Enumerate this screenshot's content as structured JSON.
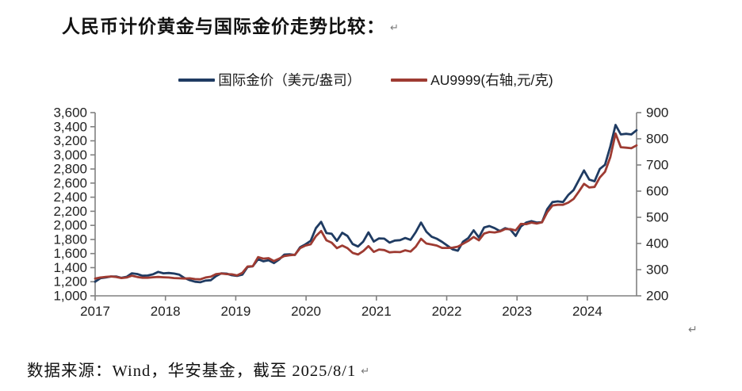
{
  "page": {
    "title": "人民币计价黄金与国际金价走势比较：",
    "source_note": "数据来源：Wind，华安基金，截至 2025/8/1",
    "return_mark": "↵"
  },
  "chart_data": {
    "type": "line",
    "title": "人民币计价黄金与国际金价走势比较",
    "grid": false,
    "legend_position": "top-center",
    "x_axis": {
      "unit": "year",
      "start": 2017.0,
      "end": 2025.583,
      "step_years": 0.0833333,
      "tick_labels": [
        "2017",
        "2018",
        "2019",
        "2020",
        "2021",
        "2022",
        "2023",
        "2024"
      ]
    },
    "left_axis": {
      "min": 1000,
      "max": 3600,
      "tick_labels": [
        "3,600",
        "3,400",
        "3,200",
        "3,000",
        "2,800",
        "2,600",
        "2,400",
        "2,200",
        "2,000",
        "1,800",
        "1,600",
        "1,400",
        "1,200",
        "1,000"
      ]
    },
    "right_axis": {
      "min": 200,
      "max": 900,
      "tick_labels": [
        "900",
        "800",
        "700",
        "600",
        "500",
        "400",
        "300",
        "200"
      ]
    },
    "colors": {
      "international_gold": "#1F3B62",
      "au9999": "#9E3B32",
      "axis": "#808080"
    },
    "series": [
      {
        "name": "国际金价（美元/盎司）",
        "axis": "left",
        "color": "#1F3B62",
        "values": [
          1200,
          1250,
          1260,
          1275,
          1275,
          1255,
          1270,
          1320,
          1310,
          1285,
          1288,
          1305,
          1340,
          1320,
          1324,
          1316,
          1300,
          1253,
          1222,
          1200,
          1192,
          1216,
          1222,
          1280,
          1320,
          1315,
          1293,
          1282,
          1300,
          1410,
          1420,
          1520,
          1490,
          1505,
          1465,
          1515,
          1585,
          1590,
          1580,
          1690,
          1730,
          1780,
          1960,
          2050,
          1890,
          1880,
          1780,
          1895,
          1850,
          1735,
          1700,
          1770,
          1900,
          1770,
          1815,
          1812,
          1755,
          1785,
          1790,
          1820,
          1795,
          1905,
          2040,
          1910,
          1840,
          1810,
          1765,
          1712,
          1660,
          1640,
          1770,
          1820,
          1930,
          1828,
          1970,
          1990,
          1960,
          1920,
          1960,
          1940,
          1850,
          1985,
          2040,
          2060,
          2040,
          2045,
          2230,
          2330,
          2340,
          2330,
          2430,
          2500,
          2640,
          2780,
          2650,
          2625,
          2800,
          2860,
          3120,
          3425,
          3290,
          3300,
          3290,
          3350
        ]
      },
      {
        "name": "AU9999(右轴,元/克)",
        "axis": "right",
        "color": "#9E3B32",
        "values": [
          266,
          270,
          272,
          274,
          272,
          268,
          270,
          277,
          272,
          269,
          269,
          271,
          272,
          271,
          270,
          268,
          267,
          266,
          267,
          264,
          263,
          270,
          273,
          283,
          285,
          283,
          282,
          278,
          288,
          312,
          313,
          348,
          342,
          344,
          333,
          342,
          352,
          355,
          357,
          382,
          392,
          397,
          428,
          448,
          412,
          403,
          382,
          392,
          382,
          364,
          358,
          371,
          390,
          368,
          377,
          375,
          366,
          368,
          367,
          374,
          369,
          388,
          418,
          400,
          396,
          392,
          383,
          383,
          384,
          388,
          399,
          410,
          425,
          412,
          438,
          444,
          442,
          446,
          455,
          455,
          450,
          475,
          474,
          480,
          476,
          481,
          519,
          545,
          548,
          548,
          556,
          570,
          598,
          628,
          614,
          616,
          652,
          674,
          730,
          820,
          768,
          766,
          764,
          775
        ]
      }
    ]
  }
}
